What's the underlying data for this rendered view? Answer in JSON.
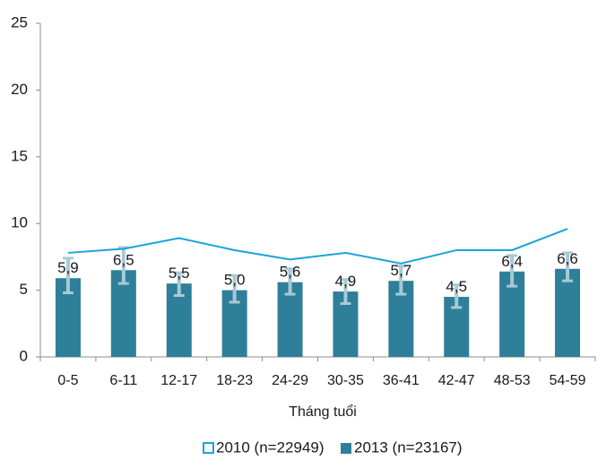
{
  "chart_data": {
    "type": "bar",
    "title": "",
    "xlabel": "Tháng tuổi",
    "ylabel": "",
    "ylim": [
      0,
      25
    ],
    "yticks": [
      "0",
      "5",
      "10",
      "15",
      "20",
      "25"
    ],
    "grid": false,
    "legend_position": "bottom",
    "categories": [
      "0-5",
      "6-11",
      "12-17",
      "18-23",
      "24-29",
      "30-35",
      "36-41",
      "42-47",
      "48-53",
      "54-59"
    ],
    "series": [
      {
        "name": "2010 (n=22949)",
        "type": "line",
        "color": "#1aa3dc",
        "values": [
          7.8,
          8.1,
          8.9,
          8.0,
          7.3,
          7.8,
          7.0,
          8.0,
          8.0,
          9.6
        ]
      },
      {
        "name": "2013 (n=23167)",
        "type": "bar",
        "color": "#2e7f99",
        "values": [
          5.9,
          6.5,
          5.5,
          5.0,
          5.6,
          4.9,
          5.7,
          4.5,
          6.4,
          6.6
        ],
        "data_labels": [
          "5,9",
          "6,5",
          "5,5",
          "5,0",
          "5,6",
          "4,9",
          "5,7",
          "4,5",
          "6,4",
          "6,6"
        ],
        "error_low": [
          4.8,
          5.5,
          4.6,
          4.1,
          4.7,
          4.0,
          4.7,
          3.7,
          5.3,
          5.7
        ],
        "error_high": [
          7.4,
          8.2,
          6.3,
          6.1,
          6.6,
          5.8,
          6.8,
          5.4,
          7.6,
          7.8
        ],
        "error_color": "#a9c9d6"
      }
    ]
  }
}
